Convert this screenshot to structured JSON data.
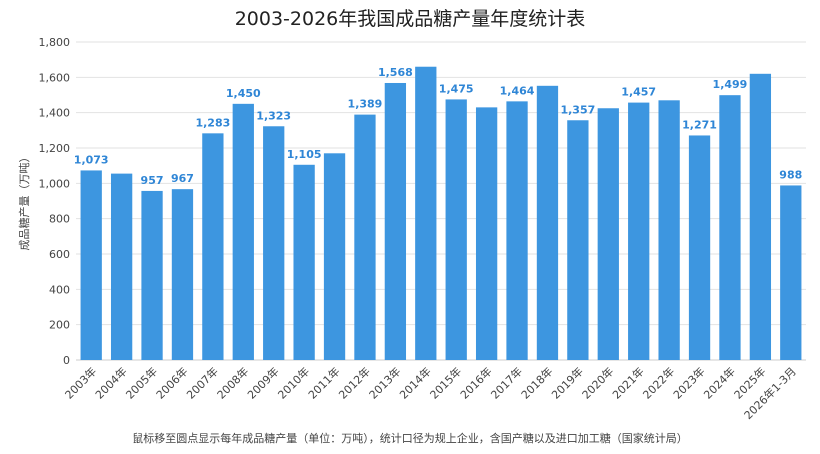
{
  "chart_data": {
    "type": "bar",
    "title": "2003-2026年我国成品糖产量年度统计表",
    "ylabel": "成品糖产量（万吨）",
    "xlabel": "",
    "ylim": [
      0,
      1800
    ],
    "yticks": [
      0,
      200,
      400,
      600,
      800,
      1000,
      1200,
      1400,
      1600,
      1800
    ],
    "ytick_labels": [
      "0",
      "200",
      "400",
      "600",
      "800",
      "1,000",
      "1,200",
      "1,400",
      "1,600",
      "1,800"
    ],
    "grid": true,
    "bar_color": "#3d96e0",
    "categories": [
      "2003年",
      "2004年",
      "2005年",
      "2006年",
      "2007年",
      "2008年",
      "2009年",
      "2010年",
      "2011年",
      "2012年",
      "2013年",
      "2014年",
      "2015年",
      "2016年",
      "2017年",
      "2018年",
      "2019年",
      "2020年",
      "2021年",
      "2022年",
      "2023年",
      "2024年",
      "2025年",
      "2026年1-3月"
    ],
    "values": [
      1073,
      1055,
      957,
      967,
      1283,
      1450,
      1323,
      1105,
      1170,
      1389,
      1568,
      1660,
      1475,
      1430,
      1464,
      1552,
      1357,
      1425,
      1457,
      1470,
      1271,
      1499,
      1620,
      988
    ],
    "data_labels": [
      "1,073",
      "",
      "957",
      "967",
      "1,283",
      "1,450",
      "1,323",
      "1,105",
      "",
      "1,389",
      "1,568",
      "",
      "1,475",
      "",
      "1,464",
      "",
      "1,357",
      "",
      "1,457",
      "",
      "1,271",
      "1,499",
      "",
      "988"
    ],
    "footnote": "鼠标移至圆点显示每年成品糖产量（单位：万吨），统计口径为规上企业，含国产糖以及进口加工糖（国家统计局）"
  }
}
